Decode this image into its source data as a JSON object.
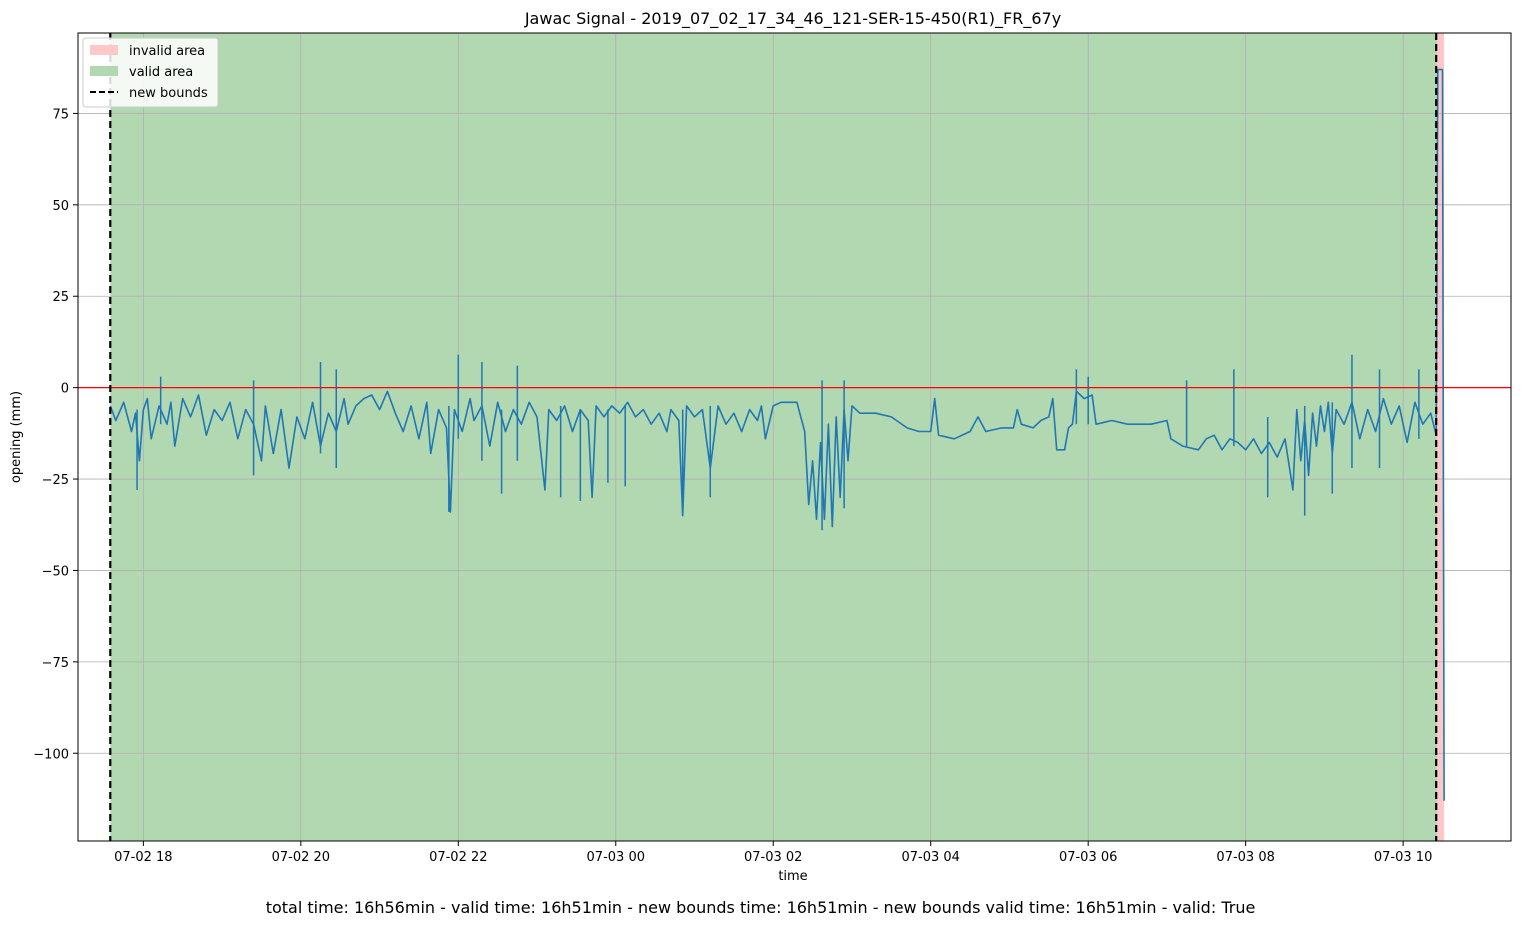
{
  "chart_data": {
    "type": "line",
    "title": "Jawac Signal - 2019_07_02_17_34_46_121-SER-15-450(R1)_FR_67y",
    "xlabel": "time",
    "ylabel": "opening (mm)",
    "caption": "total time: 16h56min - valid time: 16h51min - new bounds time: 16h51min - new bounds valid time: 16h51min - valid: True",
    "x_range": [
      "2019-07-02 17:10",
      "2019-07-03 11:22"
    ],
    "xlim_hours": [
      17.17,
      35.37
    ],
    "ylim": [
      -124,
      97
    ],
    "x_ticks": [
      {
        "hour": 18,
        "label": "07-02 18"
      },
      {
        "hour": 20,
        "label": "07-02 20"
      },
      {
        "hour": 22,
        "label": "07-02 22"
      },
      {
        "hour": 24,
        "label": "07-03 00"
      },
      {
        "hour": 26,
        "label": "07-03 02"
      },
      {
        "hour": 28,
        "label": "07-03 04"
      },
      {
        "hour": 30,
        "label": "07-03 06"
      },
      {
        "hour": 32,
        "label": "07-03 08"
      },
      {
        "hour": 34,
        "label": "07-03 10"
      }
    ],
    "y_ticks": [
      {
        "value": 75,
        "label": "75"
      },
      {
        "value": 50,
        "label": "50"
      },
      {
        "value": 25,
        "label": "25"
      },
      {
        "value": 0,
        "label": "0"
      },
      {
        "value": -25,
        "label": "−25"
      },
      {
        "value": -50,
        "label": "−50"
      },
      {
        "value": -75,
        "label": "−75"
      },
      {
        "value": -100,
        "label": "−100"
      }
    ],
    "grid": true,
    "legend_position": "top-left",
    "legend": [
      {
        "key": "invalid",
        "label": "invalid area",
        "type": "patch"
      },
      {
        "key": "valid",
        "label": "valid area",
        "type": "patch"
      },
      {
        "key": "bounds",
        "label": "new bounds",
        "type": "dashed-line"
      }
    ],
    "valid_area_hours": [
      17.58,
      34.43
    ],
    "invalid_area_hours": [
      34.43,
      34.52
    ],
    "new_bounds_hours": [
      17.58,
      34.42
    ],
    "reference_line_value": 0,
    "series": [
      {
        "points": [
          [
            17.58,
            -5
          ],
          [
            17.65,
            -9
          ],
          [
            17.75,
            -4
          ],
          [
            17.85,
            -12
          ],
          [
            17.9,
            -7
          ],
          [
            17.95,
            -20
          ],
          [
            18.0,
            -6
          ],
          [
            18.05,
            -3
          ],
          [
            18.1,
            -14
          ],
          [
            18.2,
            -5
          ],
          [
            18.3,
            -10
          ],
          [
            18.35,
            -4
          ],
          [
            18.4,
            -16
          ],
          [
            18.5,
            -3
          ],
          [
            18.6,
            -8
          ],
          [
            18.7,
            -2
          ],
          [
            18.8,
            -13
          ],
          [
            18.9,
            -6
          ],
          [
            19.0,
            -9
          ],
          [
            19.1,
            -4
          ],
          [
            19.2,
            -14
          ],
          [
            19.3,
            -6
          ],
          [
            19.4,
            -10
          ],
          [
            19.5,
            -20
          ],
          [
            19.55,
            -5
          ],
          [
            19.65,
            -18
          ],
          [
            19.75,
            -6
          ],
          [
            19.85,
            -22
          ],
          [
            19.95,
            -8
          ],
          [
            20.05,
            -14
          ],
          [
            20.15,
            -4
          ],
          [
            20.25,
            -16
          ],
          [
            20.35,
            -7
          ],
          [
            20.45,
            -12
          ],
          [
            20.55,
            -3
          ],
          [
            20.6,
            -10
          ],
          [
            20.7,
            -5
          ],
          [
            20.8,
            -3
          ],
          [
            20.9,
            -2
          ],
          [
            21.0,
            -6
          ],
          [
            21.1,
            -1
          ],
          [
            21.2,
            -7
          ],
          [
            21.3,
            -12
          ],
          [
            21.4,
            -5
          ],
          [
            21.5,
            -14
          ],
          [
            21.6,
            -4
          ],
          [
            21.65,
            -18
          ],
          [
            21.75,
            -6
          ],
          [
            21.85,
            -11
          ],
          [
            21.9,
            -34
          ],
          [
            21.95,
            -6
          ],
          [
            22.05,
            -12
          ],
          [
            22.15,
            -3
          ],
          [
            22.2,
            -9
          ],
          [
            22.3,
            -5
          ],
          [
            22.4,
            -16
          ],
          [
            22.5,
            -4
          ],
          [
            22.6,
            -12
          ],
          [
            22.7,
            -6
          ],
          [
            22.8,
            -10
          ],
          [
            22.9,
            -4
          ],
          [
            23.0,
            -8
          ],
          [
            23.1,
            -28
          ],
          [
            23.15,
            -6
          ],
          [
            23.25,
            -9
          ],
          [
            23.35,
            -5
          ],
          [
            23.45,
            -12
          ],
          [
            23.55,
            -6
          ],
          [
            23.65,
            -9
          ],
          [
            23.7,
            -30
          ],
          [
            23.75,
            -5
          ],
          [
            23.85,
            -8
          ],
          [
            23.95,
            -5
          ],
          [
            24.05,
            -7
          ],
          [
            24.15,
            -4
          ],
          [
            24.25,
            -8
          ],
          [
            24.35,
            -6
          ],
          [
            24.45,
            -10
          ],
          [
            24.55,
            -7
          ],
          [
            24.65,
            -12
          ],
          [
            24.7,
            -6
          ],
          [
            24.8,
            -9
          ],
          [
            24.85,
            -35
          ],
          [
            24.9,
            -5
          ],
          [
            25.0,
            -8
          ],
          [
            25.1,
            -6
          ],
          [
            25.2,
            -22
          ],
          [
            25.3,
            -5
          ],
          [
            25.4,
            -10
          ],
          [
            25.5,
            -7
          ],
          [
            25.6,
            -12
          ],
          [
            25.7,
            -6
          ],
          [
            25.8,
            -9
          ],
          [
            25.85,
            -5
          ],
          [
            25.9,
            -14
          ],
          [
            26.0,
            -5
          ],
          [
            26.1,
            -4
          ],
          [
            26.2,
            -4
          ],
          [
            26.3,
            -4
          ],
          [
            26.4,
            -12
          ],
          [
            26.45,
            -32
          ],
          [
            26.5,
            -20
          ],
          [
            26.55,
            -36
          ],
          [
            26.6,
            -15
          ],
          [
            26.65,
            -36
          ],
          [
            26.7,
            -10
          ],
          [
            26.75,
            -38
          ],
          [
            26.8,
            -8
          ],
          [
            26.85,
            -30
          ],
          [
            26.9,
            -6
          ],
          [
            26.95,
            -20
          ],
          [
            27.0,
            -5
          ],
          [
            27.1,
            -7
          ],
          [
            27.3,
            -7
          ],
          [
            27.5,
            -8
          ],
          [
            27.7,
            -11
          ],
          [
            27.85,
            -12
          ],
          [
            28.0,
            -12
          ],
          [
            28.05,
            -3
          ],
          [
            28.1,
            -13
          ],
          [
            28.3,
            -14
          ],
          [
            28.5,
            -12
          ],
          [
            28.6,
            -8
          ],
          [
            28.7,
            -12
          ],
          [
            28.9,
            -11
          ],
          [
            29.05,
            -11
          ],
          [
            29.1,
            -6
          ],
          [
            29.15,
            -10
          ],
          [
            29.3,
            -11
          ],
          [
            29.4,
            -9
          ],
          [
            29.5,
            -8
          ],
          [
            29.55,
            -3
          ],
          [
            29.6,
            -17
          ],
          [
            29.7,
            -17
          ],
          [
            29.75,
            -11
          ],
          [
            29.8,
            -10
          ],
          [
            29.85,
            -1
          ],
          [
            29.9,
            -2
          ],
          [
            29.95,
            -3
          ],
          [
            30.05,
            -2
          ],
          [
            30.1,
            -10
          ],
          [
            30.3,
            -9
          ],
          [
            30.5,
            -10
          ],
          [
            30.8,
            -10
          ],
          [
            31.0,
            -9
          ],
          [
            31.05,
            -14
          ],
          [
            31.2,
            -16
          ],
          [
            31.4,
            -17
          ],
          [
            31.5,
            -14
          ],
          [
            31.6,
            -13
          ],
          [
            31.7,
            -17
          ],
          [
            31.8,
            -14
          ],
          [
            31.9,
            -15
          ],
          [
            32.0,
            -17
          ],
          [
            32.1,
            -14
          ],
          [
            32.2,
            -18
          ],
          [
            32.3,
            -15
          ],
          [
            32.4,
            -19
          ],
          [
            32.5,
            -14
          ],
          [
            32.6,
            -28
          ],
          [
            32.65,
            -6
          ],
          [
            32.7,
            -20
          ],
          [
            32.75,
            -9
          ],
          [
            32.8,
            -24
          ],
          [
            32.85,
            -7
          ],
          [
            32.9,
            -16
          ],
          [
            32.95,
            -5
          ],
          [
            33.0,
            -12
          ],
          [
            33.05,
            -4
          ],
          [
            33.1,
            -18
          ],
          [
            33.15,
            -6
          ],
          [
            33.25,
            -10
          ],
          [
            33.35,
            -4
          ],
          [
            33.45,
            -14
          ],
          [
            33.55,
            -6
          ],
          [
            33.65,
            -12
          ],
          [
            33.75,
            -3
          ],
          [
            33.85,
            -10
          ],
          [
            33.95,
            -5
          ],
          [
            34.05,
            -15
          ],
          [
            34.15,
            -4
          ],
          [
            34.25,
            -10
          ],
          [
            34.35,
            -7
          ],
          [
            34.42,
            -13
          ],
          [
            34.44,
            87
          ],
          [
            34.5,
            87
          ],
          [
            34.52,
            -113
          ]
        ]
      }
    ],
    "spikes": [
      {
        "hour": 17.92,
        "low": -28,
        "high": -6
      },
      {
        "hour": 18.22,
        "low": -10,
        "high": 3
      },
      {
        "hour": 19.4,
        "low": -24,
        "high": 2
      },
      {
        "hour": 20.25,
        "low": -18,
        "high": 7
      },
      {
        "hour": 20.45,
        "low": -22,
        "high": 5
      },
      {
        "hour": 21.88,
        "low": -34,
        "high": -5
      },
      {
        "hour": 22.0,
        "low": -14,
        "high": 9
      },
      {
        "hour": 22.3,
        "low": -20,
        "high": 7
      },
      {
        "hour": 22.55,
        "low": -29,
        "high": -6
      },
      {
        "hour": 22.75,
        "low": -20,
        "high": 6
      },
      {
        "hour": 23.3,
        "low": -30,
        "high": -5
      },
      {
        "hour": 23.55,
        "low": -31,
        "high": -6
      },
      {
        "hour": 23.9,
        "low": -26,
        "high": -6
      },
      {
        "hour": 24.12,
        "low": -27,
        "high": -5
      },
      {
        "hour": 24.85,
        "low": -35,
        "high": -6
      },
      {
        "hour": 25.2,
        "low": -30,
        "high": -5
      },
      {
        "hour": 26.62,
        "low": -39,
        "high": 2
      },
      {
        "hour": 26.9,
        "low": -33,
        "high": 2
      },
      {
        "hour": 29.85,
        "low": -10,
        "high": 5
      },
      {
        "hour": 30.0,
        "low": -10,
        "high": 3
      },
      {
        "hour": 31.25,
        "low": -16,
        "high": 2
      },
      {
        "hour": 31.85,
        "low": -16,
        "high": 5
      },
      {
        "hour": 32.28,
        "low": -30,
        "high": -8
      },
      {
        "hour": 32.75,
        "low": -35,
        "high": -5
      },
      {
        "hour": 33.1,
        "low": -29,
        "high": -4
      },
      {
        "hour": 33.35,
        "low": -22,
        "high": 9
      },
      {
        "hour": 33.7,
        "low": -22,
        "high": 5
      },
      {
        "hour": 34.2,
        "low": -14,
        "high": 5
      }
    ],
    "colors": {
      "line": "#1f77b4",
      "valid_area": "#b2d8b2",
      "invalid_area": "#ffc8c8",
      "reference": "#ff0000",
      "bounds": "#000000",
      "grid": "#b0b0b0"
    }
  }
}
